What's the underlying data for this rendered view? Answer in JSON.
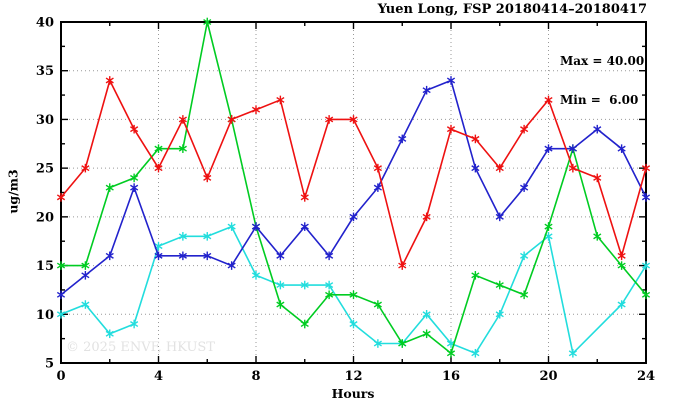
{
  "title": "Yuen Long, FSP 20180414–20180417",
  "stats": {
    "max_label": "Max = 40.00",
    "min_label": "Min =  6.00"
  },
  "watermark": "© 2025 ENVF, HKUST",
  "axes": {
    "x_label": "Hours",
    "y_label": "ug/m3",
    "x_ticks": [
      0,
      4,
      8,
      12,
      16,
      20,
      24
    ],
    "y_ticks": [
      5,
      10,
      15,
      20,
      25,
      30,
      35,
      40
    ],
    "x_minor_step": 2,
    "y_minor_step": 2.5
  },
  "colors": {
    "axis": "#000000",
    "grid": "#999999",
    "watermark": "#e2e2e2",
    "red": "#ee1111",
    "green": "#00cc22",
    "blue": "#2222cc",
    "cyan": "#22dddd"
  },
  "chart_data": {
    "type": "line",
    "title": "Yuen Long, FSP 20180414–20180417",
    "xlabel": "Hours",
    "ylabel": "ug/m3",
    "xlim": [
      0,
      24
    ],
    "ylim": [
      5,
      40
    ],
    "grid": true,
    "legend_position": "none",
    "annotations": [
      "Max = 40.00",
      "Min =  6.00"
    ],
    "x": [
      0,
      1,
      2,
      3,
      4,
      5,
      6,
      7,
      8,
      9,
      10,
      11,
      12,
      13,
      14,
      15,
      16,
      17,
      18,
      19,
      20,
      21,
      22,
      23,
      24
    ],
    "series": [
      {
        "name": "red",
        "color": "#ee1111",
        "marker": "star",
        "values": [
          22,
          25,
          34,
          29,
          25,
          30,
          24,
          30,
          31,
          32,
          22,
          30,
          30,
          25,
          15,
          20,
          29,
          28,
          25,
          29,
          32,
          25,
          24,
          16,
          25
        ]
      },
      {
        "name": "green",
        "color": "#00cc22",
        "marker": "star",
        "values": [
          15,
          15,
          23,
          24,
          27,
          27,
          40,
          30,
          19,
          11,
          9,
          12,
          12,
          11,
          7,
          8,
          6,
          14,
          13,
          12,
          19,
          27,
          18,
          15,
          12
        ]
      },
      {
        "name": "blue",
        "color": "#2222cc",
        "marker": "star",
        "values": [
          12,
          14,
          16,
          23,
          16,
          16,
          16,
          15,
          19,
          16,
          19,
          16,
          20,
          23,
          28,
          33,
          34,
          25,
          20,
          23,
          27,
          27,
          29,
          27,
          22
        ]
      },
      {
        "name": "cyan",
        "color": "#22dddd",
        "marker": "star",
        "values": [
          10,
          11,
          8,
          9,
          17,
          18,
          18,
          19,
          14,
          13,
          13,
          13,
          9,
          7,
          7,
          10,
          7,
          6,
          10,
          16,
          18,
          6,
          null,
          11,
          15
        ]
      }
    ]
  }
}
